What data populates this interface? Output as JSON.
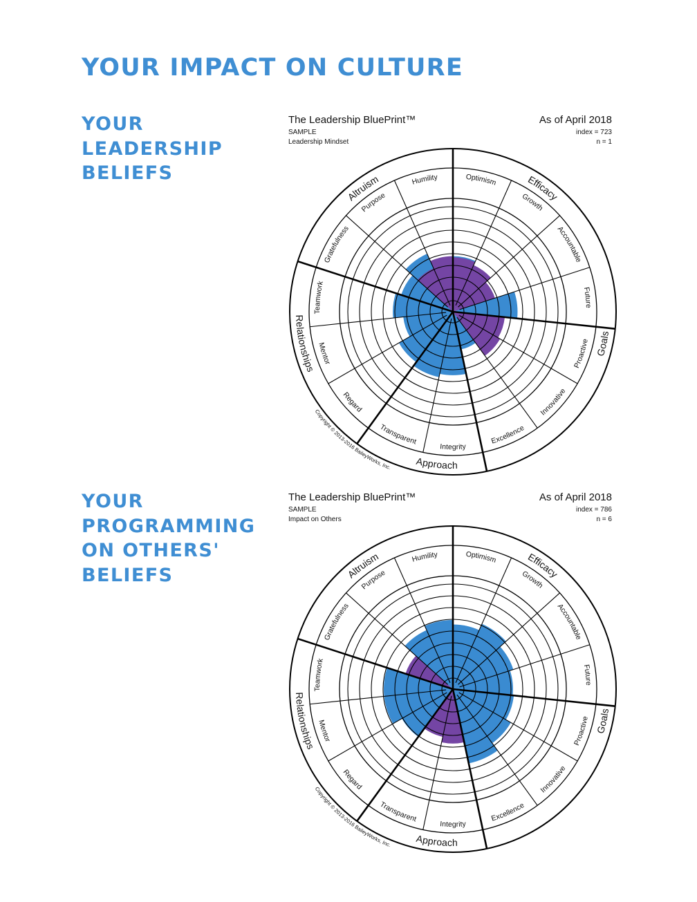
{
  "page_title": "YOUR IMPACT ON CULTURE",
  "colors": {
    "heading": "#3f8ed3",
    "fill_blue": "#3a8bd1",
    "fill_purple": "#7445a4",
    "outline": "#000000"
  },
  "sections": [
    {
      "title_lines": [
        "YOUR",
        "LEADERSHIP",
        "BELIEFS"
      ],
      "chart": {
        "title": "The Leadership BluePrint™",
        "as_of": "As of April 2018",
        "sample": "SAMPLE",
        "subtitle": "Leadership Mindset",
        "index": "index = 723",
        "n": "n = 1"
      }
    },
    {
      "title_lines": [
        "YOUR",
        "PROGRAMMING",
        "ON OTHERS'",
        "BELIEFS"
      ],
      "chart": {
        "title": "The Leadership BluePrint™",
        "as_of": "As of April 2018",
        "sample": "SAMPLE",
        "subtitle": "Impact on Others",
        "index": "index = 786",
        "n": "n = 6"
      }
    }
  ],
  "wheel": {
    "categories": [
      "Efficacy",
      "Goals",
      "Approach",
      "Relationships",
      "Altruism"
    ],
    "segments": [
      "Optimism",
      "Growth",
      "Accountable",
      "Future",
      "Proactive",
      "Innovative",
      "Excellence",
      "Integrity",
      "Transparent",
      "Regard",
      "Mentor",
      "Teamwork",
      "Gratefulness",
      "Purpose",
      "Humility"
    ],
    "copyright": "Copyright © 2013-2016 BaileyWorks, Inc."
  },
  "chart_data": [
    {
      "type": "radial-bar",
      "title": "The Leadership BluePrint™",
      "subtitle": "Leadership Mindset",
      "scale_max": 10,
      "series": [
        {
          "color": "blue",
          "categories": [
            "Optimism",
            "Growth",
            "Accountable",
            "Future",
            "Proactive",
            "Innovative",
            "Excellence",
            "Integrity",
            "Transparent",
            "Regard",
            "Mentor",
            "Teamwork",
            "Gratefulness",
            "Purpose",
            "Humility"
          ],
          "values": [
            4.9,
            0,
            0,
            5.7,
            0,
            0,
            3.4,
            5.6,
            5.9,
            5.5,
            4.4,
            5.3,
            4.8,
            5.6,
            0
          ]
        },
        {
          "color": "purple",
          "categories": [
            "Optimism",
            "Growth",
            "Accountable",
            "Future",
            "Proactive",
            "Innovative",
            "Excellence",
            "Integrity",
            "Transparent",
            "Regard",
            "Mentor",
            "Teamwork",
            "Gratefulness",
            "Purpose",
            "Humility"
          ],
          "values": [
            4.8,
            4.5,
            3.9,
            0,
            4.6,
            4.8,
            0,
            0,
            0,
            0,
            0,
            0,
            0,
            4.2,
            4.9
          ]
        }
      ]
    },
    {
      "type": "radial-bar",
      "title": "The Leadership BluePrint™",
      "subtitle": "Impact on Others",
      "scale_max": 10,
      "series": [
        {
          "color": "blue",
          "categories": [
            "Optimism",
            "Growth",
            "Accountable",
            "Future",
            "Proactive",
            "Innovative",
            "Excellence",
            "Integrity",
            "Transparent",
            "Regard",
            "Mentor",
            "Teamwork",
            "Gratefulness",
            "Purpose",
            "Humility"
          ],
          "values": [
            5.7,
            6.3,
            5.6,
            5.3,
            5.4,
            5.9,
            6.7,
            0,
            0,
            5.2,
            6.1,
            6.1,
            0,
            5.7,
            6.1
          ]
        },
        {
          "color": "purple",
          "categories": [
            "Optimism",
            "Growth",
            "Accountable",
            "Future",
            "Proactive",
            "Innovative",
            "Excellence",
            "Integrity",
            "Transparent",
            "Regard",
            "Mentor",
            "Teamwork",
            "Gratefulness",
            "Purpose",
            "Humility"
          ],
          "values": [
            0,
            0,
            0,
            0,
            0,
            0,
            0,
            4.8,
            4.3,
            0,
            0,
            0,
            4.4,
            0,
            0
          ]
        }
      ]
    }
  ]
}
